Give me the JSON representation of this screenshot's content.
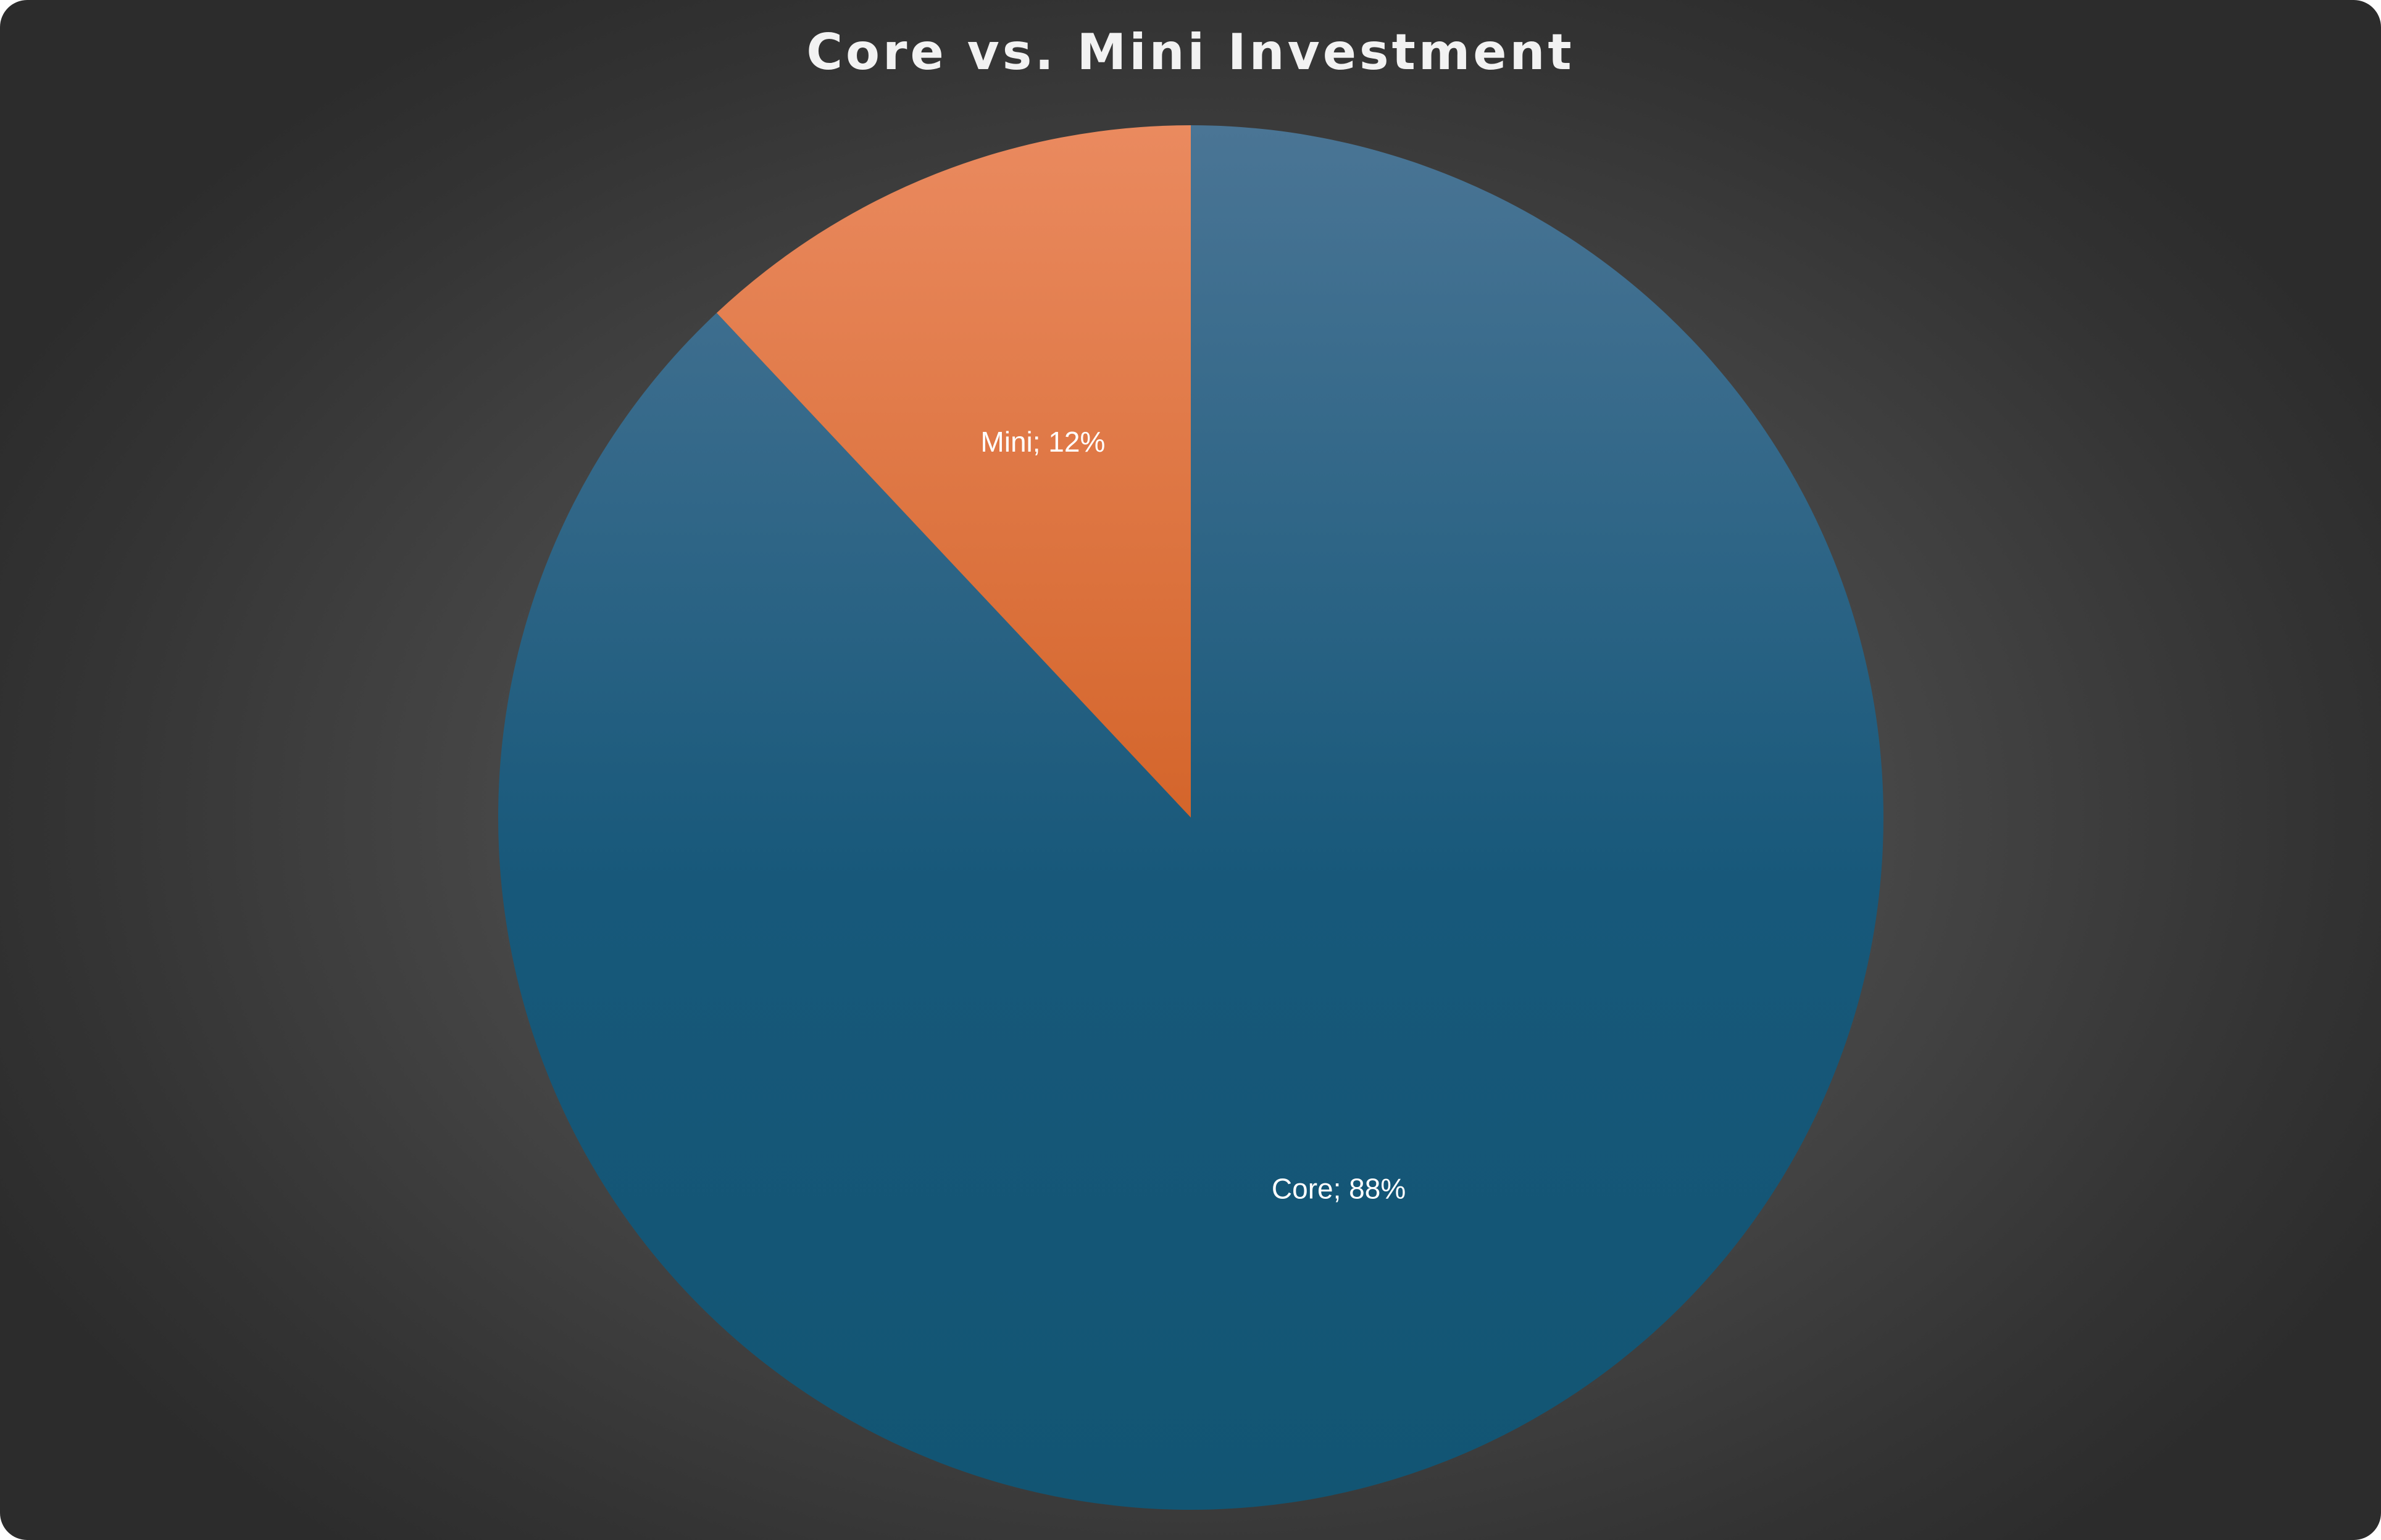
{
  "chart_data": {
    "type": "pie",
    "title": "Core vs. Mini Investment",
    "slices": [
      {
        "name": "Core",
        "value": 88,
        "label": "Core; 88%",
        "color": "#17587A"
      },
      {
        "name": "Mini",
        "value": 12,
        "label": "Mini; 12%",
        "color": "#E46C2E"
      }
    ],
    "start_angle": "12 o'clock",
    "direction": "clockwise",
    "legend": "none",
    "colors": {
      "background": "#3d3d3d",
      "title": "#f2f2f2",
      "core_top": "#4A7595",
      "core_bottom": "#125573",
      "mini_top": "#EA8A5F",
      "mini_bottom": "#D4652B",
      "label": "#ffffff"
    }
  }
}
